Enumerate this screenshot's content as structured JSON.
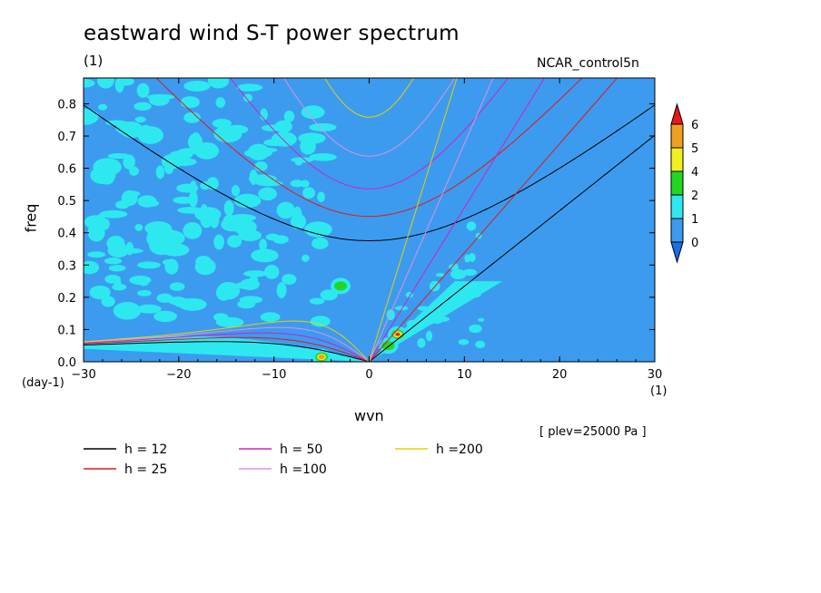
{
  "title": "eastward wind S-T power spectrum",
  "title_units": "(1)",
  "model_label": "NCAR_control5n",
  "level_label": "[ plev=25000 Pa ]",
  "chart_data": {
    "type": "heatmap",
    "xlabel": "wvn",
    "x_units": "(1)",
    "ylabel": "freq",
    "y_units": "(day-1)",
    "xlim": [
      -30,
      30
    ],
    "ylim": [
      0.0,
      0.88
    ],
    "x_ticks": [
      -30,
      -20,
      -10,
      0,
      10,
      20,
      30
    ],
    "y_ticks": [
      0.0,
      0.1,
      0.2,
      0.3,
      0.4,
      0.5,
      0.6,
      0.7,
      0.8
    ],
    "colorbar": {
      "levels": [
        "0",
        "1",
        "2",
        "4",
        "5",
        "6"
      ],
      "colors": [
        "#2a8fe6",
        "#3c9bef",
        "#2ee8f0",
        "#22d622",
        "#f0f020",
        "#f0a020",
        "#e81818"
      ],
      "extend": "both"
    },
    "dispersion_curves": [
      {
        "name": "h = 12",
        "color": "#000000"
      },
      {
        "name": "h = 25",
        "color": "#e01818"
      },
      {
        "name": "h = 50",
        "color": "#d020c8"
      },
      {
        "name": "h =100",
        "color": "#e090e0"
      },
      {
        "name": "h =200",
        "color": "#e8d000"
      }
    ]
  }
}
